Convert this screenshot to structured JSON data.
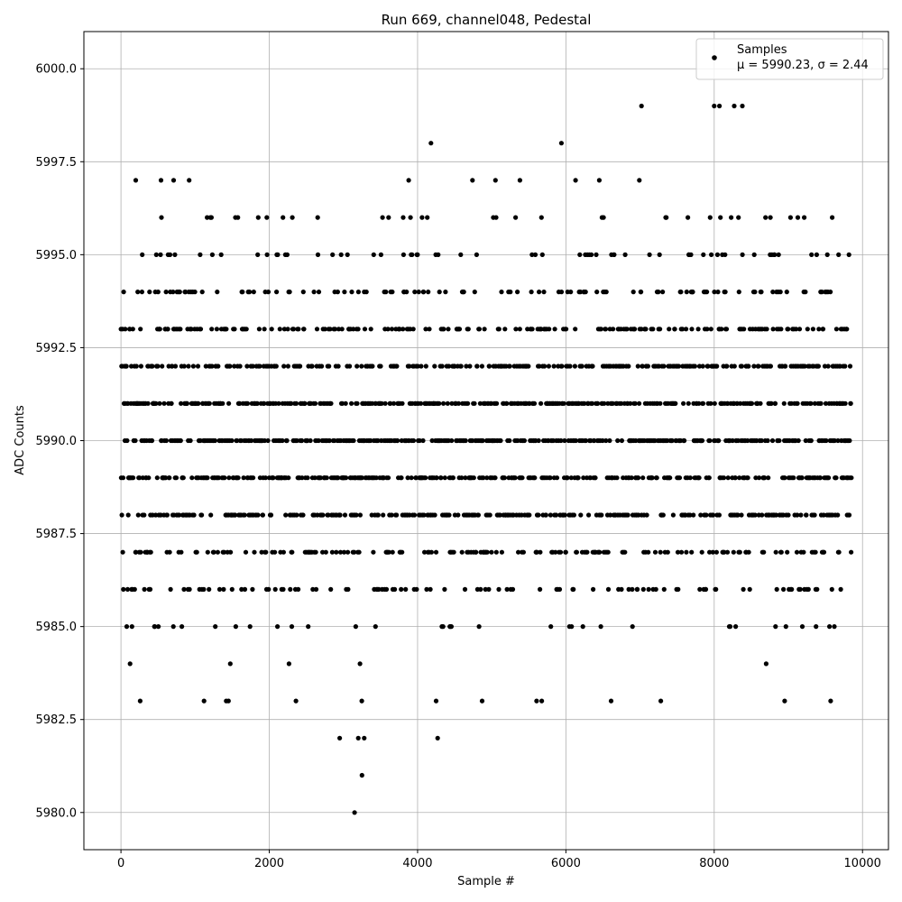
{
  "chart_data": {
    "type": "scatter",
    "title": "Run 669, channel048, Pedestal",
    "xlabel": "Sample #",
    "ylabel": "ADC Counts",
    "xlim": [
      -500,
      10350
    ],
    "ylim": [
      5979.0,
      6001.0
    ],
    "xticks": [
      0,
      2000,
      4000,
      6000,
      8000,
      10000
    ],
    "xtick_labels": [
      "0",
      "2000",
      "4000",
      "6000",
      "8000",
      "10000"
    ],
    "yticks": [
      5980.0,
      5982.5,
      5985.0,
      5987.5,
      5990.0,
      5992.5,
      5995.0,
      5997.5,
      6000.0
    ],
    "ytick_labels": [
      "5980.0",
      "5982.5",
      "5985.0",
      "5987.5",
      "5990.0",
      "5992.5",
      "5995.0",
      "5997.5",
      "6000.0"
    ],
    "grid": true,
    "legend_position": "top-right",
    "series": [
      {
        "name": "Samples",
        "stats": "μ = 5990.23, σ = 2.44",
        "color": "#000000",
        "mean": 5990.23,
        "sigma": 2.44,
        "x_range": [
          0,
          9850
        ],
        "y_range": [
          5980,
          5999
        ]
      }
    ],
    "annotated_points": [
      {
        "x": 3150,
        "y": 5980
      },
      {
        "x": 3250,
        "y": 5981
      },
      {
        "x": 2950,
        "y": 5982
      },
      {
        "x": 3200,
        "y": 5982
      },
      {
        "x": 3280,
        "y": 5982
      },
      {
        "x": 4270,
        "y": 5982
      },
      {
        "x": 1120,
        "y": 5983
      },
      {
        "x": 1420,
        "y": 5983
      },
      {
        "x": 1450,
        "y": 5983
      },
      {
        "x": 2360,
        "y": 5983
      },
      {
        "x": 4250,
        "y": 5983
      },
      {
        "x": 4870,
        "y": 5983
      },
      {
        "x": 6610,
        "y": 5983
      },
      {
        "x": 7280,
        "y": 5983
      },
      {
        "x": 8950,
        "y": 5983
      },
      {
        "x": 7020,
        "y": 5999
      },
      {
        "x": 8000,
        "y": 5999
      },
      {
        "x": 8070,
        "y": 5999
      },
      {
        "x": 8270,
        "y": 5999
      },
      {
        "x": 8380,
        "y": 5999
      },
      {
        "x": 4180,
        "y": 5998
      },
      {
        "x": 5940,
        "y": 5998
      },
      {
        "x": 200,
        "y": 5997
      },
      {
        "x": 540,
        "y": 5997
      },
      {
        "x": 710,
        "y": 5997
      },
      {
        "x": 920,
        "y": 5997
      },
      {
        "x": 3880,
        "y": 5997
      },
      {
        "x": 4740,
        "y": 5997
      },
      {
        "x": 5050,
        "y": 5997
      },
      {
        "x": 5380,
        "y": 5997
      },
      {
        "x": 6130,
        "y": 5997
      },
      {
        "x": 6450,
        "y": 5997
      },
      {
        "x": 6990,
        "y": 5997
      }
    ]
  },
  "legend": {
    "series_label": "Samples",
    "stats_label": "μ = 5990.23, σ = 2.44"
  }
}
